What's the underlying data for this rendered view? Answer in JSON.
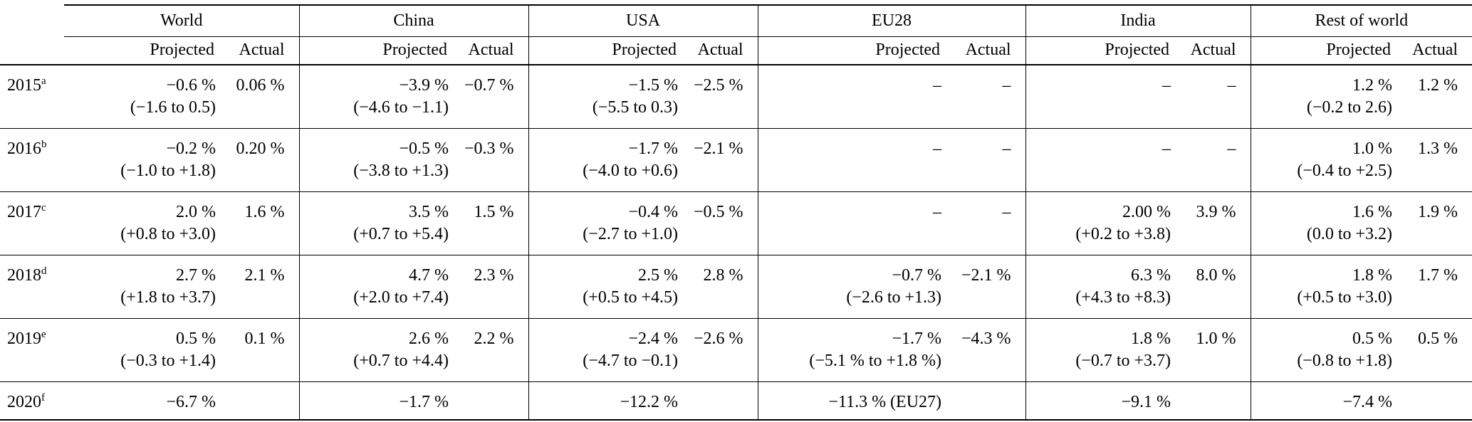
{
  "colors": {
    "background": "#ffffff",
    "text": "#000000",
    "rules": "#000000"
  },
  "table": {
    "column_groups": [
      {
        "label": "World"
      },
      {
        "label": "China"
      },
      {
        "label": "USA"
      },
      {
        "label": "EU28"
      },
      {
        "label": "India"
      },
      {
        "label": "Rest of world"
      }
    ],
    "subheaders": {
      "projected": "Projected",
      "actual": "Actual"
    },
    "rows": [
      {
        "year": "2015",
        "note": "a",
        "cells": [
          {
            "projected": "−0.6 %",
            "range": "(−1.6 to 0.5)",
            "actual": "0.06 %"
          },
          {
            "projected": "−3.9 %",
            "range": "(−4.6 to −1.1)",
            "actual": "−0.7 %"
          },
          {
            "projected": "−1.5 %",
            "range": "(−5.5 to 0.3)",
            "actual": "−2.5 %"
          },
          {
            "projected": "–",
            "range": "",
            "actual": "–"
          },
          {
            "projected": "–",
            "range": "",
            "actual": "–"
          },
          {
            "projected": "1.2 %",
            "range": "(−0.2 to 2.6)",
            "actual": "1.2 %"
          }
        ]
      },
      {
        "year": "2016",
        "note": "b",
        "cells": [
          {
            "projected": "−0.2 %",
            "range": "(−1.0 to +1.8)",
            "actual": "0.20 %"
          },
          {
            "projected": "−0.5 %",
            "range": "(−3.8 to +1.3)",
            "actual": "−0.3 %"
          },
          {
            "projected": "−1.7 %",
            "range": "(−4.0 to +0.6)",
            "actual": "−2.1 %"
          },
          {
            "projected": "–",
            "range": "",
            "actual": "–"
          },
          {
            "projected": "–",
            "range": "",
            "actual": "–"
          },
          {
            "projected": "1.0 %",
            "range": "(−0.4 to +2.5)",
            "actual": "1.3 %"
          }
        ]
      },
      {
        "year": "2017",
        "note": "c",
        "cells": [
          {
            "projected": "2.0 %",
            "range": "(+0.8 to +3.0)",
            "actual": "1.6 %"
          },
          {
            "projected": "3.5 %",
            "range": "(+0.7 to +5.4)",
            "actual": "1.5 %"
          },
          {
            "projected": "−0.4 %",
            "range": "(−2.7 to +1.0)",
            "actual": "−0.5 %"
          },
          {
            "projected": "–",
            "range": "",
            "actual": "–"
          },
          {
            "projected": "2.00 %",
            "range": "(+0.2 to +3.8)",
            "actual": "3.9 %"
          },
          {
            "projected": "1.6 %",
            "range": "(0.0 to +3.2)",
            "actual": "1.9 %"
          }
        ]
      },
      {
        "year": "2018",
        "note": "d",
        "cells": [
          {
            "projected": "2.7 %",
            "range": "(+1.8 to +3.7)",
            "actual": "2.1 %"
          },
          {
            "projected": "4.7 %",
            "range": "(+2.0 to +7.4)",
            "actual": "2.3 %"
          },
          {
            "projected": "2.5 %",
            "range": "(+0.5 to +4.5)",
            "actual": "2.8 %"
          },
          {
            "projected": "−0.7 %",
            "range": "(−2.6 to +1.3)",
            "actual": "−2.1 %"
          },
          {
            "projected": "6.3 %",
            "range": "(+4.3 to +8.3)",
            "actual": "8.0 %"
          },
          {
            "projected": "1.8 %",
            "range": "(+0.5 to +3.0)",
            "actual": "1.7 %"
          }
        ]
      },
      {
        "year": "2019",
        "note": "e",
        "cells": [
          {
            "projected": "0.5 %",
            "range": "(−0.3 to +1.4)",
            "actual": "0.1 %"
          },
          {
            "projected": "2.6 %",
            "range": "(+0.7 to +4.4)",
            "actual": "2.2 %"
          },
          {
            "projected": "−2.4 %",
            "range": "(−4.7 to −0.1)",
            "actual": "−2.6 %"
          },
          {
            "projected": "−1.7 %",
            "range": "(−5.1 % to +1.8 %)",
            "actual": "−4.3 %"
          },
          {
            "projected": "1.8 %",
            "range": "(−0.7 to +3.7)",
            "actual": "1.0 %"
          },
          {
            "projected": "0.5 %",
            "range": "(−0.8 to +1.8)",
            "actual": "0.5 %"
          }
        ]
      },
      {
        "year": "2020",
        "note": "f",
        "cells": [
          {
            "projected": "−6.7 %",
            "range": "",
            "actual": ""
          },
          {
            "projected": "−1.7 %",
            "range": "",
            "actual": ""
          },
          {
            "projected": "−12.2 %",
            "range": "",
            "actual": ""
          },
          {
            "projected": "−11.3 % (EU27)",
            "range": "",
            "actual": ""
          },
          {
            "projected": "−9.1 %",
            "range": "",
            "actual": ""
          },
          {
            "projected": "−7.4 %",
            "range": "",
            "actual": ""
          }
        ]
      }
    ]
  }
}
